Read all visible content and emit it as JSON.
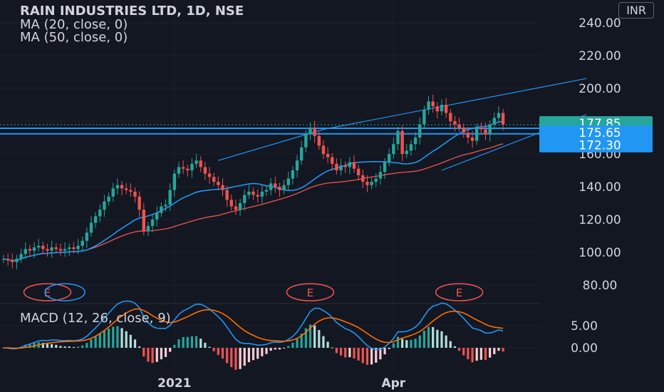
{
  "header": {
    "title": "RAIN INDUSTRIES LTD, 1D, NSE",
    "ma20_label": "MA (20, close, 0)",
    "ma50_label": "MA (50, close, 0)",
    "currency": "INR"
  },
  "macd": {
    "label": "MACD (12, 26, close, 9)"
  },
  "colors": {
    "background": "#131722",
    "up": "#26a69a",
    "down": "#ef5350",
    "ma20": "#2196f3",
    "ma50": "#ef5350",
    "macd": "#2196f3",
    "signal": "#ff6d00",
    "price_tag": "#26a69a",
    "level_tag": "#2196f3",
    "earnings": "#ef5350"
  },
  "chart_data": {
    "type": "candlestick",
    "price_axis": {
      "ticks": [
        "240.00",
        "220.00",
        "200.00",
        "180.00",
        "160.00",
        "140.00",
        "120.00",
        "100.00",
        "80.00"
      ],
      "ylim": [
        75,
        242
      ]
    },
    "macd_axis": {
      "ticks": [
        "5.00",
        "0.00"
      ]
    },
    "x_labels": [
      {
        "label": "2021",
        "index": 39
      },
      {
        "label": "Apr",
        "index": 89
      }
    ],
    "price_tags": [
      {
        "value": "177.85",
        "kind": "last_price"
      },
      {
        "value": "175.65",
        "kind": "level"
      },
      {
        "value": "172.30",
        "kind": "level"
      }
    ],
    "horizontal_levels": [
      175.65,
      172.3
    ],
    "earnings": [
      {
        "label": "E",
        "index": 10
      },
      {
        "label": "E",
        "index": 70
      },
      {
        "label": "E",
        "index": 104
      }
    ],
    "trendlines": [
      {
        "from": [
          49,
          156
        ],
        "to": [
          73,
          175
        ]
      },
      {
        "from": [
          73,
          175
        ],
        "to": [
          133,
          206
        ]
      },
      {
        "from": [
          100,
          150
        ],
        "to": [
          133,
          184
        ]
      }
    ],
    "closes": [
      96,
      95,
      94,
      96,
      99,
      102,
      101,
      103,
      104,
      102,
      101,
      103,
      102,
      101,
      102,
      103,
      102,
      104,
      107,
      112,
      118,
      122,
      126,
      131,
      134,
      139,
      141,
      139,
      138,
      137,
      134,
      126,
      113,
      116,
      120,
      124,
      128,
      129,
      138,
      148,
      152,
      151,
      150,
      154,
      156,
      152,
      148,
      146,
      143,
      141,
      138,
      132,
      128,
      126,
      130,
      135,
      137,
      135,
      134,
      137,
      138,
      142,
      140,
      138,
      141,
      145,
      150,
      156,
      164,
      172,
      176,
      171,
      165,
      160,
      158,
      154,
      150,
      153,
      152,
      155,
      151,
      147,
      143,
      141,
      143,
      145,
      149,
      155,
      160,
      166,
      174,
      160,
      162,
      166,
      170,
      178,
      187,
      192,
      189,
      186,
      190,
      185,
      180,
      178,
      176,
      173,
      170,
      168,
      176,
      175,
      172,
      178,
      182,
      185,
      178
    ]
  }
}
